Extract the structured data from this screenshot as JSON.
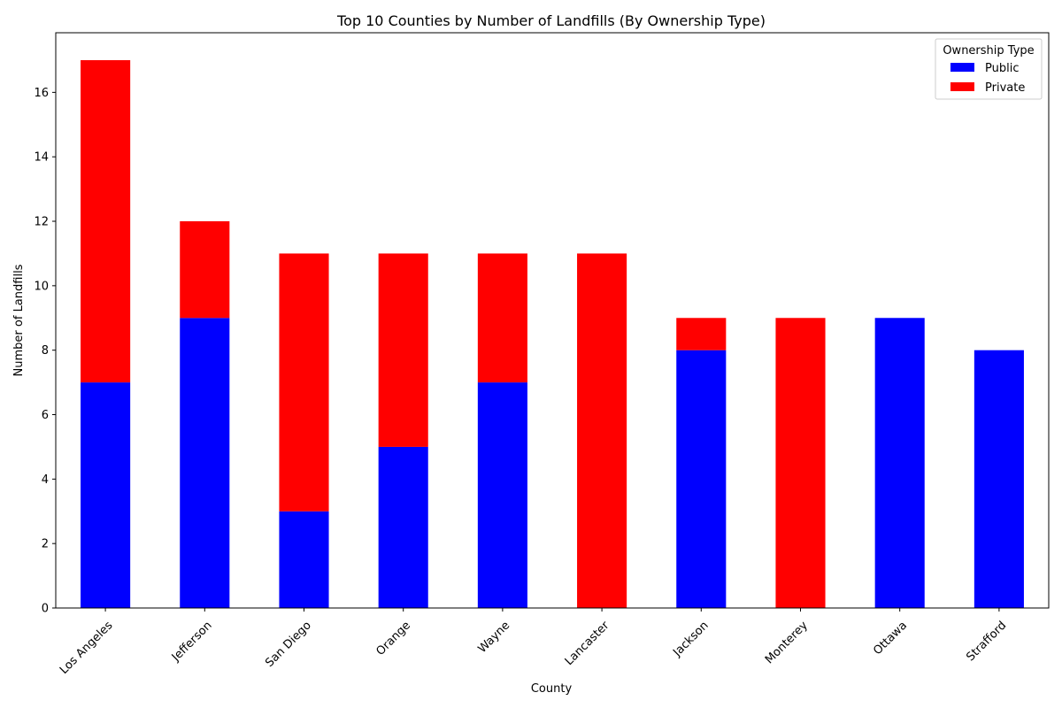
{
  "chart_data": {
    "type": "bar",
    "stacked": true,
    "title": "Top 10 Counties by Number of Landfills (By Ownership Type)",
    "xlabel": "County",
    "ylabel": "Number of Landfills",
    "categories": [
      "Los Angeles",
      "Jefferson",
      "San Diego",
      "Orange",
      "Wayne",
      "Lancaster",
      "Jackson",
      "Monterey",
      "Ottawa",
      "Strafford"
    ],
    "series": [
      {
        "name": "Public",
        "color": "#0000ff",
        "values": [
          7,
          9,
          3,
          5,
          7,
          0,
          8,
          0,
          9,
          8
        ]
      },
      {
        "name": "Private",
        "color": "#ff0000",
        "values": [
          10,
          3,
          8,
          6,
          4,
          11,
          1,
          9,
          0,
          0
        ]
      }
    ],
    "ylim": [
      0,
      17.85
    ],
    "yticks": [
      0,
      2,
      4,
      6,
      8,
      10,
      12,
      14,
      16
    ],
    "grid": false,
    "legend": {
      "title": "Ownership Type",
      "placement": "top-right"
    }
  }
}
